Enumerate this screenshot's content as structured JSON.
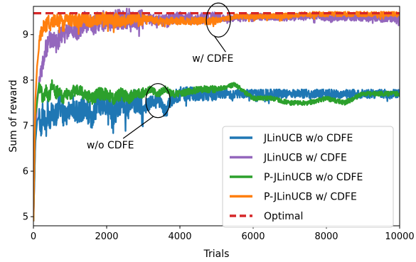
{
  "chart_data": {
    "type": "line",
    "title": "",
    "xlabel": "Trials",
    "ylabel": "Sum of reward",
    "xlim": [
      0,
      10000
    ],
    "ylim": [
      4.8,
      9.62
    ],
    "xticks": [
      0,
      2000,
      4000,
      6000,
      8000,
      10000
    ],
    "xtick_labels": [
      "0",
      "2000",
      "4000",
      "6000",
      "8000",
      "10000"
    ],
    "yticks": [
      5,
      6,
      7,
      8,
      9
    ],
    "ytick_labels": [
      "5",
      "6",
      "7",
      "8",
      "9"
    ],
    "grid": false,
    "legend_position": "lower-right",
    "optimal_value": 9.47,
    "series": [
      {
        "name": "JLinUCB w/o CDFE",
        "color": "#1f77b4",
        "style": "solid",
        "x": [
          0,
          50,
          100,
          150,
          200,
          250,
          300,
          350,
          400,
          450,
          500,
          600,
          700,
          800,
          900,
          1000,
          1200,
          1400,
          1600,
          1800,
          2000,
          2200,
          2400,
          2600,
          2800,
          3000,
          3200,
          3400,
          3600,
          3800,
          4000,
          4500,
          5000,
          5500,
          6000,
          6500,
          7000,
          7500,
          8000,
          8500,
          9000,
          9500,
          10000
        ],
        "values": [
          4.9,
          6.6,
          7.1,
          7.2,
          6.9,
          7.3,
          7.2,
          7.0,
          7.4,
          7.1,
          7.3,
          7.2,
          7.5,
          7.3,
          7.1,
          7.5,
          7.3,
          7.4,
          7.2,
          7.5,
          7.4,
          7.3,
          7.5,
          7.4,
          7.6,
          7.4,
          7.5,
          7.6,
          7.3,
          7.6,
          7.7,
          7.7,
          7.7,
          7.7,
          7.7,
          7.7,
          7.7,
          7.7,
          7.7,
          7.7,
          7.7,
          7.7,
          7.7
        ]
      },
      {
        "name": "JLinUCB w/ CDFE",
        "color": "#9467bd",
        "style": "solid",
        "x": [
          0,
          50,
          100,
          150,
          200,
          250,
          300,
          350,
          400,
          450,
          500,
          600,
          700,
          800,
          900,
          1000,
          1200,
          1400,
          1600,
          1800,
          2000,
          2500,
          3000,
          3500,
          4000,
          4500,
          5000,
          5500,
          6000,
          6500,
          7000,
          7500,
          8000,
          8500,
          9000,
          9500,
          10000
        ],
        "values": [
          4.9,
          6.6,
          7.6,
          7.9,
          8.1,
          8.4,
          8.5,
          8.7,
          8.8,
          8.9,
          8.8,
          9.0,
          8.9,
          9.1,
          9.0,
          9.2,
          9.1,
          9.3,
          9.2,
          9.3,
          9.3,
          9.35,
          9.35,
          9.3,
          9.38,
          9.35,
          9.38,
          9.35,
          9.4,
          9.38,
          9.38,
          9.4,
          9.38,
          9.38,
          9.38,
          9.35,
          9.35
        ]
      },
      {
        "name": "P-JLinUCB w/o CDFE",
        "color": "#2ca02c",
        "style": "solid",
        "x": [
          0,
          50,
          100,
          150,
          200,
          250,
          300,
          350,
          400,
          450,
          500,
          600,
          700,
          800,
          900,
          1000,
          1200,
          1400,
          1600,
          1800,
          2000,
          2200,
          2400,
          2600,
          2800,
          3000,
          3200,
          3400,
          3600,
          3800,
          4000,
          4500,
          5000,
          5500,
          6000,
          6500,
          7000,
          7500,
          8000,
          8500,
          9000,
          9500,
          10000
        ],
        "values": [
          4.9,
          7.2,
          7.5,
          7.9,
          7.8,
          7.6,
          7.7,
          7.8,
          7.6,
          7.7,
          7.9,
          7.7,
          7.8,
          7.6,
          7.7,
          7.7,
          7.8,
          7.7,
          7.6,
          7.7,
          7.7,
          7.6,
          7.7,
          7.6,
          7.7,
          7.7,
          7.8,
          7.7,
          7.8,
          7.7,
          7.7,
          7.8,
          7.8,
          7.9,
          7.6,
          7.6,
          7.5,
          7.5,
          7.6,
          7.5,
          7.7,
          7.7,
          7.7
        ]
      },
      {
        "name": "P-JLinUCB w/ CDFE",
        "color": "#ff7f0e",
        "style": "solid",
        "x": [
          0,
          50,
          100,
          150,
          200,
          250,
          300,
          350,
          400,
          450,
          500,
          600,
          700,
          800,
          900,
          1000,
          1200,
          1400,
          1600,
          1800,
          2000,
          2500,
          3000,
          3500,
          4000,
          4500,
          5000,
          5500,
          6000,
          6500,
          7000,
          7500,
          8000,
          8500,
          9000,
          9500,
          10000
        ],
        "values": [
          4.9,
          7.5,
          8.3,
          8.7,
          9.0,
          9.1,
          9.2,
          9.2,
          9.3,
          9.2,
          9.3,
          9.3,
          9.35,
          9.3,
          9.3,
          9.35,
          9.3,
          9.35,
          9.3,
          9.35,
          9.35,
          9.3,
          9.35,
          9.3,
          9.3,
          9.3,
          9.3,
          9.4,
          9.4,
          9.4,
          9.42,
          9.45,
          9.45,
          9.45,
          9.45,
          9.45,
          9.45
        ]
      },
      {
        "name": "Optimal",
        "color": "#d62728",
        "style": "dashed",
        "x": [
          0,
          10000
        ],
        "values": [
          9.47,
          9.47
        ]
      }
    ],
    "annotations": [
      {
        "text": "w/ CDFE",
        "x": 4900,
        "y": 8.4,
        "target_x": 5050,
        "target_y": 9.32
      },
      {
        "text": "w/o CDFE",
        "x": 2100,
        "y": 6.5,
        "target_x": 3400,
        "target_y": 7.55
      }
    ]
  }
}
